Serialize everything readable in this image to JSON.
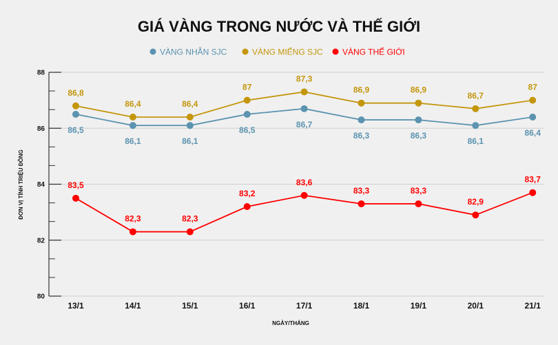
{
  "chart_data": {
    "type": "line",
    "title": "GIÁ VÀNG TRONG NƯỚC VÀ THẾ GIỚI",
    "xlabel": "NGÀY/THÁNG",
    "ylabel": "ĐƠN VỊ TÍNH TRIỆU ĐỒNG",
    "categories": [
      "13/1",
      "14/1",
      "15/1",
      "16/1",
      "17/1",
      "18/1",
      "19/1",
      "20/1",
      "21/1"
    ],
    "ylim": [
      80,
      88
    ],
    "yticks": [
      80,
      82,
      84,
      86,
      88
    ],
    "grid": true,
    "legend_placement": "top",
    "series": [
      {
        "name": "VÀNG NHẪN SJC",
        "color": "#5b93b0",
        "values": [
          86.5,
          86.1,
          86.1,
          86.5,
          86.7,
          86.3,
          86.3,
          86.1,
          86.4
        ],
        "label_position": "below"
      },
      {
        "name": "VÀNG MIẾNG SJC",
        "color": "#c4960c",
        "values": [
          86.8,
          86.4,
          86.4,
          87,
          87.3,
          86.9,
          86.9,
          86.7,
          87
        ],
        "label_position": "above"
      },
      {
        "name": "VÀNG THẾ GIỚI",
        "color": "#ff0000",
        "values": [
          83.5,
          82.3,
          82.3,
          83.2,
          83.6,
          83.3,
          83.3,
          82.9,
          83.7
        ],
        "label_position": "above"
      }
    ]
  }
}
